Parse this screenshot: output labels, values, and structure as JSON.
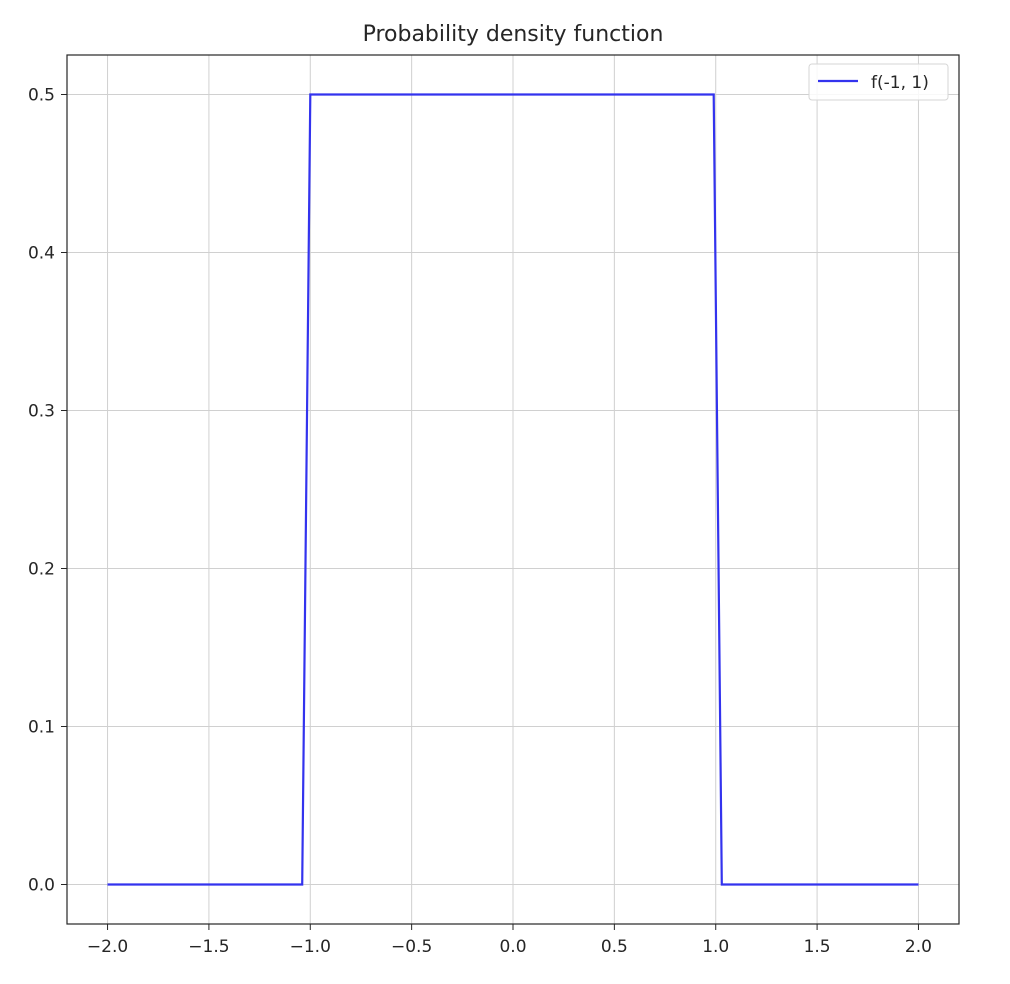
{
  "chart_data": {
    "type": "line",
    "title": "Probability density function",
    "xlabel": "",
    "ylabel": "",
    "xlim": [
      -2.2,
      2.2
    ],
    "ylim": [
      -0.025,
      0.525
    ],
    "grid": true,
    "legend_placement": "top-right",
    "x_ticks": [
      -2.0,
      -1.5,
      -1.0,
      -0.5,
      0.0,
      0.5,
      1.0,
      1.5,
      2.0
    ],
    "x_tick_labels": [
      "−2.0",
      "−1.5",
      "−1.0",
      "−0.5",
      "0.0",
      "0.5",
      "1.0",
      "1.5",
      "2.0"
    ],
    "y_ticks": [
      0.0,
      0.1,
      0.2,
      0.3,
      0.4,
      0.5
    ],
    "y_tick_labels": [
      "0.0",
      "0.1",
      "0.2",
      "0.3",
      "0.4",
      "0.5"
    ],
    "series": [
      {
        "name": "f(-1, 1)",
        "color": "#3333ee",
        "points": [
          [
            -2.0,
            0.0
          ],
          [
            -1.04,
            0.0
          ],
          [
            -1.0,
            0.5
          ],
          [
            0.0,
            0.5
          ],
          [
            0.99,
            0.5
          ],
          [
            1.03,
            0.0
          ],
          [
            2.0,
            0.0
          ]
        ]
      }
    ]
  }
}
